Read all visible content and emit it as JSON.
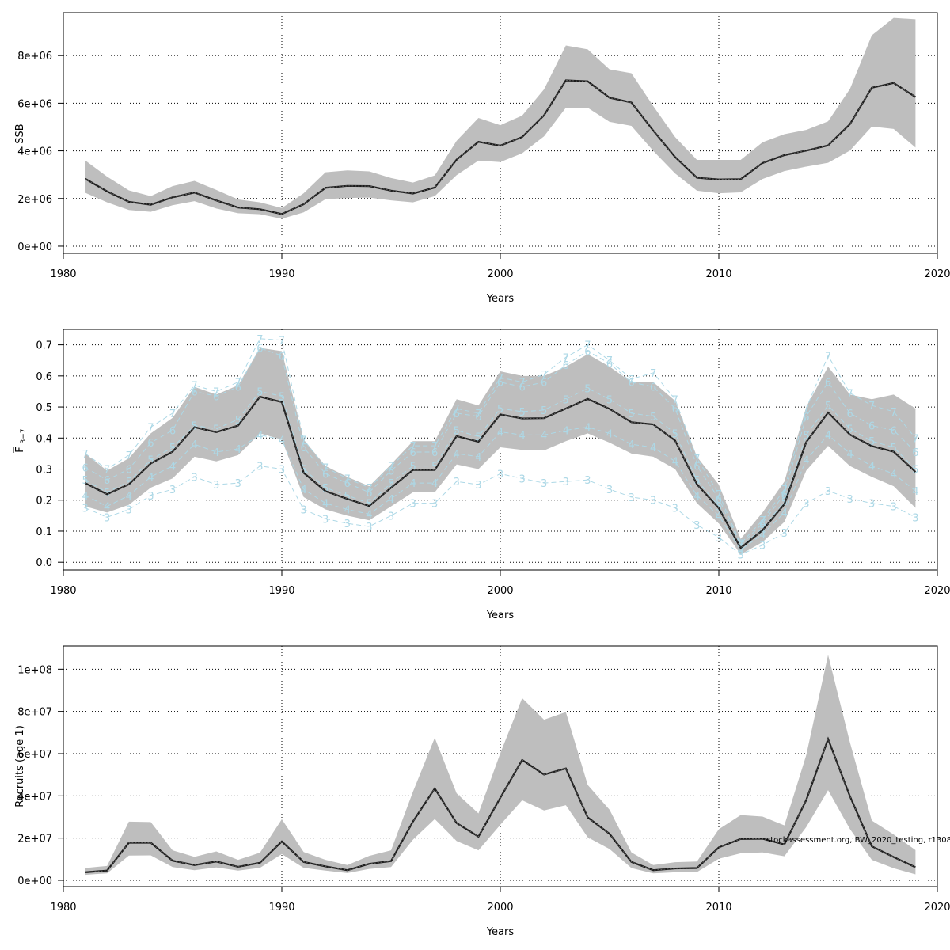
{
  "watermark": "stockassessment.org, BW_2020_testing, r1308",
  "colors": {
    "band": "#bebebe",
    "line": "#1a1a1a",
    "age": "#add8e6",
    "grid": "#000000"
  },
  "chart_data": [
    {
      "type": "area",
      "xlabel": "Years",
      "ylabel": "SSB",
      "xlim": [
        1980,
        2020
      ],
      "ylim": [
        -300000,
        9800000
      ],
      "xticks": [
        1980,
        1990,
        2000,
        2010,
        2020
      ],
      "xtick_labels": [
        "1980",
        "1990",
        "2000",
        "2010",
        "2020"
      ],
      "yticks": [
        0,
        2000000,
        4000000,
        6000000,
        8000000
      ],
      "ytick_labels": [
        "0e+00",
        "2e+06",
        "4e+06",
        "6e+06",
        "8e+06"
      ],
      "grid": true,
      "x": [
        1981,
        1982,
        1983,
        1984,
        1985,
        1986,
        1987,
        1988,
        1989,
        1990,
        1991,
        1992,
        1993,
        1994,
        1995,
        1996,
        1997,
        1998,
        1999,
        2000,
        2001,
        2002,
        2003,
        2004,
        2005,
        2006,
        2007,
        2008,
        2009,
        2010,
        2011,
        2012,
        2013,
        2014,
        2015,
        2016,
        2017,
        2018,
        2019
      ],
      "series": [
        {
          "role": "estimate",
          "values": [
            2830000,
            2300000,
            1860000,
            1740000,
            2050000,
            2250000,
            1920000,
            1620000,
            1550000,
            1350000,
            1760000,
            2450000,
            2530000,
            2520000,
            2330000,
            2210000,
            2460000,
            3630000,
            4380000,
            4220000,
            4580000,
            5490000,
            6960000,
            6920000,
            6230000,
            6030000,
            4850000,
            3740000,
            2870000,
            2800000,
            2810000,
            3490000,
            3820000,
            4010000,
            4230000,
            5120000,
            6650000,
            6850000,
            6260000
          ]
        },
        {
          "role": "lower",
          "values": [
            2240000,
            1840000,
            1520000,
            1440000,
            1720000,
            1890000,
            1580000,
            1380000,
            1340000,
            1150000,
            1420000,
            1970000,
            2020000,
            2040000,
            1920000,
            1840000,
            2100000,
            2980000,
            3590000,
            3530000,
            3900000,
            4610000,
            5810000,
            5810000,
            5220000,
            5050000,
            4000000,
            3050000,
            2330000,
            2220000,
            2260000,
            2820000,
            3150000,
            3340000,
            3500000,
            4010000,
            5020000,
            4920000,
            4140000
          ]
        },
        {
          "role": "upper",
          "values": [
            3600000,
            2920000,
            2340000,
            2100000,
            2520000,
            2740000,
            2360000,
            1960000,
            1840000,
            1600000,
            2220000,
            3100000,
            3180000,
            3140000,
            2860000,
            2670000,
            2970000,
            4420000,
            5380000,
            5080000,
            5480000,
            6580000,
            8420000,
            8260000,
            7420000,
            7260000,
            5880000,
            4580000,
            3620000,
            3620000,
            3620000,
            4360000,
            4700000,
            4880000,
            5240000,
            6600000,
            8850000,
            9580000,
            9520000
          ]
        }
      ]
    },
    {
      "type": "line",
      "xlabel": "Years",
      "ylabel_main": "F",
      "ylabel_sub": "3−7",
      "xlim": [
        1980,
        2020
      ],
      "ylim": [
        -0.025,
        0.75
      ],
      "xticks": [
        1980,
        1990,
        2000,
        2010,
        2020
      ],
      "xtick_labels": [
        "1980",
        "1990",
        "2000",
        "2010",
        "2020"
      ],
      "yticks": [
        0,
        0.1,
        0.2,
        0.3,
        0.4,
        0.5,
        0.6,
        0.7
      ],
      "ytick_labels": [
        "0.0",
        "0.1",
        "0.2",
        "0.3",
        "0.4",
        "0.5",
        "0.6",
        "0.7"
      ],
      "grid": true,
      "x": [
        1981,
        1982,
        1983,
        1984,
        1985,
        1986,
        1987,
        1988,
        1989,
        1990,
        1991,
        1992,
        1993,
        1994,
        1995,
        1996,
        1997,
        1998,
        1999,
        2000,
        2001,
        2002,
        2003,
        2004,
        2005,
        2006,
        2007,
        2008,
        2009,
        2010,
        2011,
        2012,
        2013,
        2014,
        2015,
        2016,
        2017,
        2018,
        2019
      ],
      "series": [
        {
          "role": "estimate",
          "values": [
            0.255,
            0.219,
            0.251,
            0.318,
            0.356,
            0.435,
            0.419,
            0.44,
            0.533,
            0.516,
            0.288,
            0.229,
            0.204,
            0.181,
            0.24,
            0.297,
            0.297,
            0.406,
            0.388,
            0.476,
            0.463,
            0.464,
            0.495,
            0.526,
            0.494,
            0.451,
            0.444,
            0.392,
            0.251,
            0.174,
            0.046,
            0.103,
            0.187,
            0.387,
            0.482,
            0.411,
            0.374,
            0.356,
            0.291
          ]
        },
        {
          "role": "lower",
          "values": [
            0.18,
            0.16,
            0.185,
            0.24,
            0.27,
            0.34,
            0.325,
            0.345,
            0.415,
            0.395,
            0.21,
            0.17,
            0.15,
            0.135,
            0.18,
            0.225,
            0.225,
            0.315,
            0.3,
            0.37,
            0.362,
            0.36,
            0.39,
            0.415,
            0.385,
            0.35,
            0.34,
            0.3,
            0.19,
            0.125,
            0.025,
            0.065,
            0.13,
            0.295,
            0.375,
            0.31,
            0.275,
            0.245,
            0.175
          ]
        },
        {
          "role": "upper",
          "values": [
            0.35,
            0.295,
            0.335,
            0.415,
            0.465,
            0.565,
            0.54,
            0.57,
            0.69,
            0.68,
            0.395,
            0.31,
            0.275,
            0.245,
            0.315,
            0.39,
            0.39,
            0.525,
            0.505,
            0.615,
            0.6,
            0.6,
            0.63,
            0.67,
            0.63,
            0.58,
            0.58,
            0.52,
            0.34,
            0.25,
            0.075,
            0.16,
            0.26,
            0.5,
            0.63,
            0.54,
            0.525,
            0.54,
            0.495
          ]
        },
        {
          "role": "age",
          "name": "3",
          "values": [
            0.175,
            0.145,
            0.17,
            0.215,
            0.235,
            0.275,
            0.25,
            0.255,
            0.31,
            0.3,
            0.17,
            0.14,
            0.125,
            0.115,
            0.15,
            0.19,
            0.19,
            0.26,
            0.25,
            0.285,
            0.27,
            0.255,
            0.26,
            0.265,
            0.235,
            0.21,
            0.2,
            0.175,
            0.12,
            0.08,
            0.025,
            0.055,
            0.095,
            0.19,
            0.23,
            0.205,
            0.19,
            0.18,
            0.145
          ]
        },
        {
          "role": "age",
          "name": "4",
          "values": [
            0.215,
            0.18,
            0.215,
            0.275,
            0.31,
            0.38,
            0.355,
            0.365,
            0.41,
            0.395,
            0.235,
            0.19,
            0.17,
            0.155,
            0.205,
            0.255,
            0.255,
            0.35,
            0.34,
            0.42,
            0.41,
            0.41,
            0.425,
            0.435,
            0.415,
            0.38,
            0.37,
            0.325,
            0.215,
            0.15,
            0.04,
            0.09,
            0.16,
            0.33,
            0.41,
            0.35,
            0.31,
            0.285,
            0.23
          ]
        },
        {
          "role": "age",
          "name": "5",
          "values": [
            0.265,
            0.225,
            0.26,
            0.33,
            0.37,
            0.44,
            0.43,
            0.46,
            0.55,
            0.535,
            0.3,
            0.24,
            0.215,
            0.19,
            0.255,
            0.31,
            0.31,
            0.425,
            0.405,
            0.495,
            0.485,
            0.49,
            0.525,
            0.56,
            0.525,
            0.48,
            0.47,
            0.415,
            0.265,
            0.18,
            0.048,
            0.11,
            0.195,
            0.41,
            0.505,
            0.43,
            0.39,
            0.37,
            0.3
          ]
        },
        {
          "role": "age",
          "name": "6",
          "values": [
            0.305,
            0.265,
            0.3,
            0.385,
            0.425,
            0.55,
            0.535,
            0.565,
            0.69,
            0.665,
            0.37,
            0.285,
            0.255,
            0.225,
            0.295,
            0.355,
            0.355,
            0.48,
            0.47,
            0.58,
            0.565,
            0.58,
            0.635,
            0.68,
            0.64,
            0.58,
            0.565,
            0.495,
            0.31,
            0.205,
            0.055,
            0.125,
            0.22,
            0.47,
            0.58,
            0.48,
            0.44,
            0.425,
            0.355
          ]
        },
        {
          "role": "age",
          "name": "7",
          "values": [
            0.35,
            0.3,
            0.345,
            0.435,
            0.48,
            0.57,
            0.55,
            0.58,
            0.72,
            0.715,
            0.395,
            0.305,
            0.27,
            0.24,
            0.31,
            0.375,
            0.375,
            0.495,
            0.48,
            0.595,
            0.58,
            0.605,
            0.66,
            0.7,
            0.65,
            0.59,
            0.61,
            0.525,
            0.335,
            0.22,
            0.06,
            0.135,
            0.235,
            0.495,
            0.665,
            0.545,
            0.505,
            0.485,
            0.4
          ]
        }
      ]
    },
    {
      "type": "area",
      "xlabel": "Years",
      "ylabel": "Recruits (age 1)",
      "xlim": [
        1980,
        2020
      ],
      "ylim": [
        -3000000,
        111000000
      ],
      "xticks": [
        1980,
        1990,
        2000,
        2010,
        2020
      ],
      "xtick_labels": [
        "1980",
        "1990",
        "2000",
        "2010",
        "2020"
      ],
      "yticks": [
        0,
        20000000,
        40000000,
        60000000,
        80000000,
        100000000
      ],
      "ytick_labels": [
        "0e+00",
        "2e+07",
        "4e+07",
        "6e+07",
        "8e+07",
        "1e+08"
      ],
      "grid": true,
      "x": [
        1981,
        1982,
        1983,
        1984,
        1985,
        1986,
        1987,
        1988,
        1989,
        1990,
        1991,
        1992,
        1993,
        1994,
        1995,
        1996,
        1997,
        1998,
        1999,
        2000,
        2001,
        2002,
        2003,
        2004,
        2005,
        2006,
        2007,
        2008,
        2009,
        2010,
        2011,
        2012,
        2013,
        2014,
        2015,
        2016,
        2017,
        2018,
        2019
      ],
      "series": [
        {
          "role": "estimate",
          "values": [
            3800000,
            4600000,
            17800000,
            17800000,
            9300000,
            7200000,
            8900000,
            6400000,
            8300000,
            18400000,
            8700000,
            6600000,
            4800000,
            7800000,
            9100000,
            27800000,
            43500000,
            27100000,
            20700000,
            39100000,
            57000000,
            50100000,
            53000000,
            29800000,
            22000000,
            8700000,
            4800000,
            5600000,
            5800000,
            15600000,
            19600000,
            19700000,
            17000000,
            38000000,
            66900000,
            39800000,
            16100000,
            11000000,
            6200000
          ]
        },
        {
          "role": "lower",
          "values": [
            2600000,
            3300000,
            11700000,
            11800000,
            6300000,
            4800000,
            6100000,
            4600000,
            5900000,
            12400000,
            5900000,
            4600000,
            3400000,
            5400000,
            6300000,
            19200000,
            29000000,
            18600000,
            14200000,
            26300000,
            37900000,
            33100000,
            35600000,
            20400000,
            14800000,
            5800000,
            3300000,
            3800000,
            3900000,
            10200000,
            12800000,
            13200000,
            11400000,
            25200000,
            42700000,
            24300000,
            9700000,
            5700000,
            2800000
          ]
        },
        {
          "role": "upper",
          "values": [
            5800000,
            6800000,
            27800000,
            27600000,
            14200000,
            11100000,
            13700000,
            9700000,
            13100000,
            28900000,
            13400000,
            9700000,
            7200000,
            11600000,
            14200000,
            41900000,
            67500000,
            41200000,
            31700000,
            60200000,
            86300000,
            76100000,
            79700000,
            45200000,
            33400000,
            13200000,
            7200000,
            8600000,
            8900000,
            24200000,
            30900000,
            30200000,
            26000000,
            59300000,
            106800000,
            65300000,
            28300000,
            21700000,
            14300000
          ]
        }
      ]
    }
  ]
}
